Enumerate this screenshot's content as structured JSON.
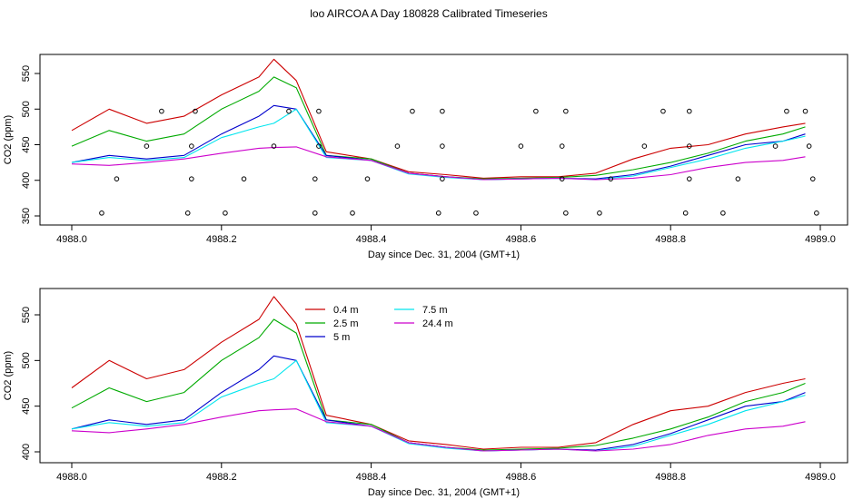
{
  "figure": {
    "title": "loo AIRCOA A  Day 180828  Calibrated Timeseries"
  },
  "colors": {
    "0.4 m": "#cc0000",
    "2.5 m": "#00aa00",
    "5 m": "#0000cc",
    "7.5 m": "#00e5ee",
    "24.4 m": "#cc00cc",
    "markers": "#000000"
  },
  "chart_data": [
    {
      "type": "line",
      "xlabel": "Day since Dec. 31, 2004 (GMT+1)",
      "ylabel": "CO2 (ppm)",
      "xlim": [
        4988.0,
        4989.0
      ],
      "ylim": [
        350,
        575
      ],
      "xticks": [
        4988.0,
        4988.2,
        4988.4,
        4988.6,
        4988.8,
        4989.0
      ],
      "xtick_labels": [
        "4988.0",
        "4988.2",
        "4988.4",
        "4988.6",
        "4988.8",
        "4989.0"
      ],
      "yticks": [
        350,
        400,
        450,
        500,
        550
      ],
      "ytick_labels": [
        "350",
        "400",
        "450",
        "500",
        "550"
      ],
      "grid": false,
      "legend": null,
      "series": [
        {
          "name": "0.4 m",
          "x": [
            4988.0,
            4988.05,
            4988.1,
            4988.15,
            4988.2,
            4988.25,
            4988.27,
            4988.3,
            4988.34,
            4988.4,
            4988.45,
            4988.5,
            4988.55,
            4988.6,
            4988.65,
            4988.7,
            4988.75,
            4988.8,
            4988.85,
            4988.9,
            4988.95,
            4988.98
          ],
          "values": [
            470,
            500,
            480,
            490,
            520,
            545,
            570,
            540,
            440,
            430,
            412,
            408,
            403,
            405,
            405,
            410,
            430,
            445,
            450,
            465,
            475,
            480
          ]
        },
        {
          "name": "2.5 m",
          "x": [
            4988.0,
            4988.05,
            4988.1,
            4988.15,
            4988.2,
            4988.25,
            4988.27,
            4988.3,
            4988.34,
            4988.4,
            4988.45,
            4988.5,
            4988.55,
            4988.6,
            4988.65,
            4988.7,
            4988.75,
            4988.8,
            4988.85,
            4988.9,
            4988.95,
            4988.98
          ],
          "values": [
            448,
            470,
            455,
            465,
            500,
            525,
            545,
            530,
            435,
            430,
            410,
            405,
            402,
            403,
            404,
            407,
            415,
            425,
            438,
            455,
            465,
            475
          ]
        },
        {
          "name": "5 m",
          "x": [
            4988.0,
            4988.05,
            4988.1,
            4988.15,
            4988.2,
            4988.25,
            4988.27,
            4988.3,
            4988.34,
            4988.4,
            4988.45,
            4988.5,
            4988.55,
            4988.6,
            4988.65,
            4988.7,
            4988.75,
            4988.8,
            4988.85,
            4988.9,
            4988.95,
            4988.98
          ],
          "values": [
            425,
            435,
            430,
            435,
            465,
            490,
            505,
            500,
            435,
            428,
            410,
            405,
            401,
            402,
            403,
            402,
            408,
            420,
            435,
            450,
            455,
            465
          ]
        },
        {
          "name": "7.5 m",
          "x": [
            4988.0,
            4988.05,
            4988.1,
            4988.15,
            4988.2,
            4988.25,
            4988.27,
            4988.3,
            4988.34,
            4988.4,
            4988.45,
            4988.5,
            4988.55,
            4988.6,
            4988.65,
            4988.7,
            4988.75,
            4988.8,
            4988.85,
            4988.9,
            4988.95,
            4988.98
          ],
          "values": [
            425,
            432,
            428,
            432,
            460,
            475,
            480,
            500,
            432,
            428,
            409,
            404,
            401,
            402,
            403,
            401,
            406,
            418,
            430,
            445,
            455,
            462
          ]
        },
        {
          "name": "24.4 m",
          "x": [
            4988.0,
            4988.05,
            4988.1,
            4988.15,
            4988.2,
            4988.25,
            4988.27,
            4988.3,
            4988.34,
            4988.4,
            4988.45,
            4988.5,
            4988.55,
            4988.6,
            4988.65,
            4988.7,
            4988.75,
            4988.8,
            4988.85,
            4988.9,
            4988.95,
            4988.98
          ],
          "values": [
            423,
            421,
            425,
            430,
            438,
            445,
            446,
            447,
            433,
            428,
            410,
            405,
            401,
            402,
            403,
            401,
            403,
            408,
            418,
            425,
            428,
            433
          ]
        }
      ],
      "markers": {
        "type": "scatter",
        "x": [
          4988.04,
          4988.06,
          4988.1,
          4988.12,
          4988.155,
          4988.16,
          4988.16,
          4988.165,
          4988.205,
          4988.23,
          4988.27,
          4988.29,
          4988.325,
          4988.325,
          4988.33,
          4988.33,
          4988.375,
          4988.395,
          4988.435,
          4988.455,
          4988.49,
          4988.495,
          4988.495,
          4988.495,
          4988.54,
          4988.6,
          4988.62,
          4988.655,
          4988.655,
          4988.66,
          4988.66,
          4988.705,
          4988.72,
          4988.765,
          4988.79,
          4988.82,
          4988.825,
          4988.825,
          4988.825,
          4988.87,
          4988.89,
          4988.94,
          4988.955,
          4988.98,
          4988.985,
          4988.99,
          4988.995
        ],
        "values": [
          354,
          402,
          448,
          497,
          354,
          402,
          448,
          497,
          354,
          402,
          448,
          497,
          354,
          402,
          448,
          497,
          354,
          402,
          448,
          497,
          354,
          402,
          448,
          497,
          354,
          448,
          497,
          402,
          448,
          497,
          354,
          354,
          402,
          448,
          497,
          354,
          402,
          448,
          497,
          354,
          402,
          448,
          497,
          497,
          448,
          402,
          354
        ]
      }
    },
    {
      "type": "line",
      "xlabel": "Day since Dec. 31, 2004 (GMT+1)",
      "ylabel": "CO2 (ppm)",
      "xlim": [
        4988.0,
        4989.0
      ],
      "ylim": [
        397,
        575
      ],
      "xticks": [
        4988.0,
        4988.2,
        4988.4,
        4988.6,
        4988.8,
        4989.0
      ],
      "xtick_labels": [
        "4988.0",
        "4988.2",
        "4988.4",
        "4988.6",
        "4988.8",
        "4989.0"
      ],
      "yticks": [
        400,
        450,
        500,
        550
      ],
      "ytick_labels": [
        "400",
        "450",
        "500",
        "550"
      ],
      "grid": false,
      "legend": "top-center",
      "legend_labels": [
        "0.4 m",
        "2.5 m",
        "5 m",
        "7.5 m",
        "24.4 m"
      ],
      "series": [
        {
          "name": "0.4 m",
          "x": [
            4988.0,
            4988.05,
            4988.1,
            4988.15,
            4988.2,
            4988.25,
            4988.27,
            4988.3,
            4988.34,
            4988.4,
            4988.45,
            4988.5,
            4988.55,
            4988.6,
            4988.65,
            4988.7,
            4988.75,
            4988.8,
            4988.85,
            4988.9,
            4988.95,
            4988.98
          ],
          "values": [
            470,
            500,
            480,
            490,
            520,
            545,
            570,
            540,
            440,
            430,
            412,
            408,
            403,
            405,
            405,
            410,
            430,
            445,
            450,
            465,
            475,
            480
          ]
        },
        {
          "name": "2.5 m",
          "x": [
            4988.0,
            4988.05,
            4988.1,
            4988.15,
            4988.2,
            4988.25,
            4988.27,
            4988.3,
            4988.34,
            4988.4,
            4988.45,
            4988.5,
            4988.55,
            4988.6,
            4988.65,
            4988.7,
            4988.75,
            4988.8,
            4988.85,
            4988.9,
            4988.95,
            4988.98
          ],
          "values": [
            448,
            470,
            455,
            465,
            500,
            525,
            545,
            530,
            435,
            430,
            410,
            405,
            402,
            403,
            404,
            407,
            415,
            425,
            438,
            455,
            465,
            475
          ]
        },
        {
          "name": "5 m",
          "x": [
            4988.0,
            4988.05,
            4988.1,
            4988.15,
            4988.2,
            4988.25,
            4988.27,
            4988.3,
            4988.34,
            4988.4,
            4988.45,
            4988.5,
            4988.55,
            4988.6,
            4988.65,
            4988.7,
            4988.75,
            4988.8,
            4988.85,
            4988.9,
            4988.95,
            4988.98
          ],
          "values": [
            425,
            435,
            430,
            435,
            465,
            490,
            505,
            500,
            435,
            428,
            410,
            405,
            401,
            402,
            403,
            402,
            408,
            420,
            435,
            450,
            455,
            465
          ]
        },
        {
          "name": "7.5 m",
          "x": [
            4988.0,
            4988.05,
            4988.1,
            4988.15,
            4988.2,
            4988.25,
            4988.27,
            4988.3,
            4988.34,
            4988.4,
            4988.45,
            4988.5,
            4988.55,
            4988.6,
            4988.65,
            4988.7,
            4988.75,
            4988.8,
            4988.85,
            4988.9,
            4988.95,
            4988.98
          ],
          "values": [
            425,
            432,
            428,
            432,
            460,
            475,
            480,
            500,
            432,
            428,
            409,
            404,
            401,
            402,
            403,
            401,
            406,
            418,
            430,
            445,
            455,
            462
          ]
        },
        {
          "name": "24.4 m",
          "x": [
            4988.0,
            4988.05,
            4988.1,
            4988.15,
            4988.2,
            4988.25,
            4988.27,
            4988.3,
            4988.34,
            4988.4,
            4988.45,
            4988.5,
            4988.55,
            4988.6,
            4988.65,
            4988.7,
            4988.75,
            4988.8,
            4988.85,
            4988.9,
            4988.95,
            4988.98
          ],
          "values": [
            423,
            421,
            425,
            430,
            438,
            445,
            446,
            447,
            433,
            428,
            410,
            405,
            401,
            402,
            403,
            401,
            403,
            408,
            418,
            425,
            428,
            433
          ]
        }
      ]
    }
  ]
}
